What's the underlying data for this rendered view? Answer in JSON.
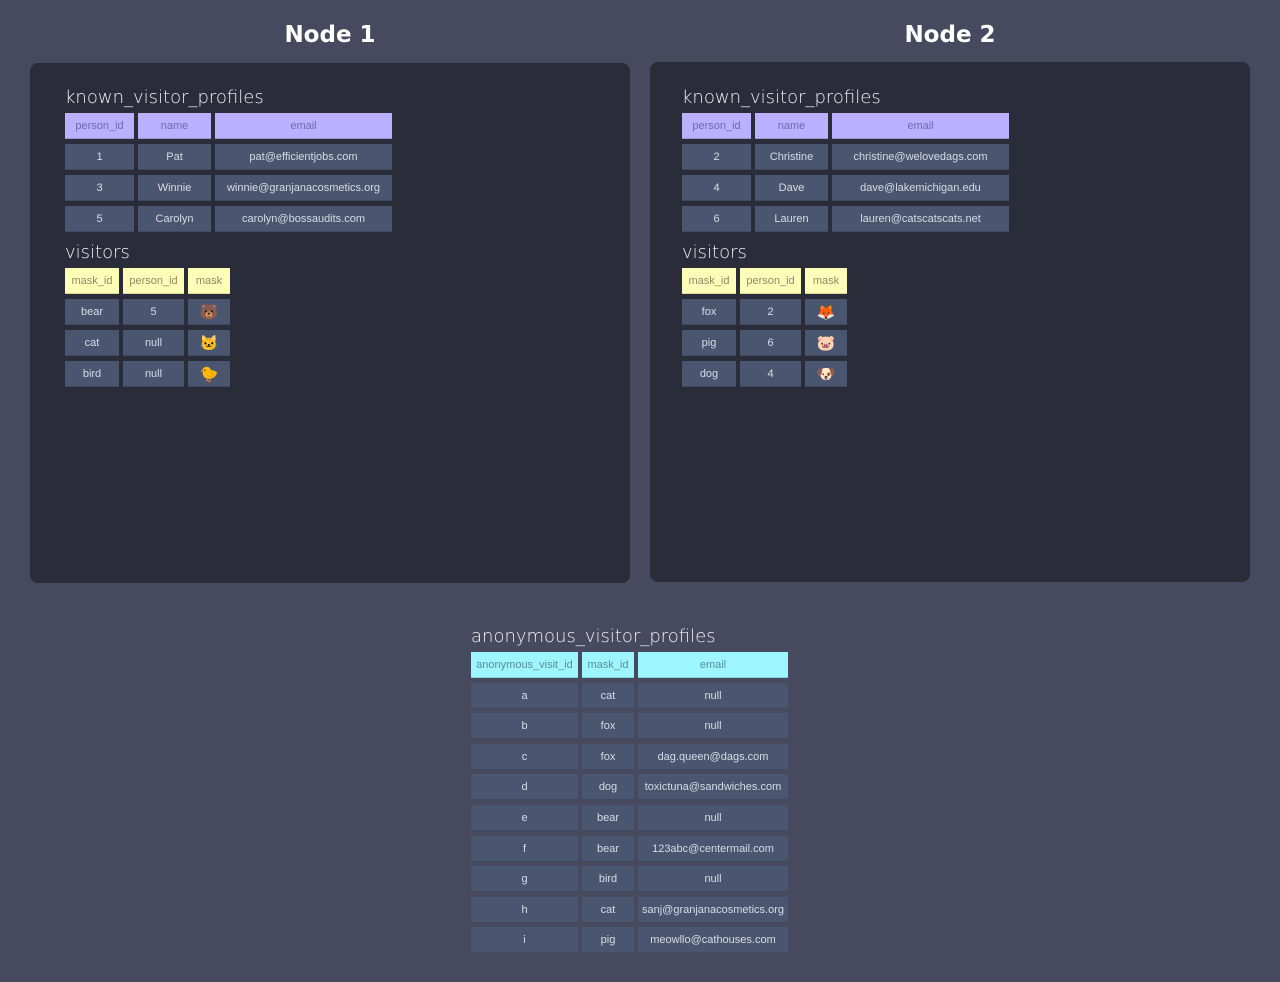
{
  "nodes": [
    {
      "title": "Node 1",
      "known_visitor_profiles": {
        "name": "known_visitor_profiles",
        "columns": [
          "person_id",
          "name",
          "email"
        ],
        "rows": [
          [
            "1",
            "Pat",
            "pat@efficientjobs.com"
          ],
          [
            "3",
            "Winnie",
            "winnie@granjanacosmetics.org"
          ],
          [
            "5",
            "Carolyn",
            "carolyn@bossaudits.com"
          ]
        ]
      },
      "visitors": {
        "name": "visitors",
        "columns": [
          "mask_id",
          "person_id",
          "mask"
        ],
        "rows": [
          [
            "bear",
            "5",
            "🐻"
          ],
          [
            "cat",
            "null",
            "🐱"
          ],
          [
            "bird",
            "null",
            "🐤"
          ]
        ]
      }
    },
    {
      "title": "Node 2",
      "known_visitor_profiles": {
        "name": "known_visitor_profiles",
        "columns": [
          "person_id",
          "name",
          "email"
        ],
        "rows": [
          [
            "2",
            "Christine",
            "christine@welovedags.com"
          ],
          [
            "4",
            "Dave",
            "dave@lakemichigan.edu"
          ],
          [
            "6",
            "Lauren",
            "lauren@catscatscats.net"
          ]
        ]
      },
      "visitors": {
        "name": "visitors",
        "columns": [
          "mask_id",
          "person_id",
          "mask"
        ],
        "rows": [
          [
            "fox",
            "2",
            "🦊"
          ],
          [
            "pig",
            "6",
            "🐷"
          ],
          [
            "dog",
            "4",
            "🐶"
          ]
        ]
      }
    }
  ],
  "anonymous_visitor_profiles": {
    "name": "anonymous_visitor_profiles",
    "columns": [
      "anonymous_visit_id",
      "mask_id",
      "email"
    ],
    "rows": [
      [
        "a",
        "cat",
        "null"
      ],
      [
        "b",
        "fox",
        "null"
      ],
      [
        "c",
        "fox",
        "dag.queen@dags.com"
      ],
      [
        "d",
        "dog",
        "toxictuna@sandwiches.com"
      ],
      [
        "e",
        "bear",
        "null"
      ],
      [
        "f",
        "bear",
        "123abc@centermail.com"
      ],
      [
        "g",
        "bird",
        "null"
      ],
      [
        "h",
        "cat",
        "sanj@granjanacosmetics.org"
      ],
      [
        "i",
        "pig",
        "meowllo@cathouses.com"
      ]
    ]
  },
  "colors": {
    "background": "#474a5e",
    "panel": "#2a2c39",
    "cell": "#4a5670",
    "known_header": "#b9b1ff",
    "visitors_header": "#ffffb8",
    "anonymous_header": "#9cf5ff"
  }
}
